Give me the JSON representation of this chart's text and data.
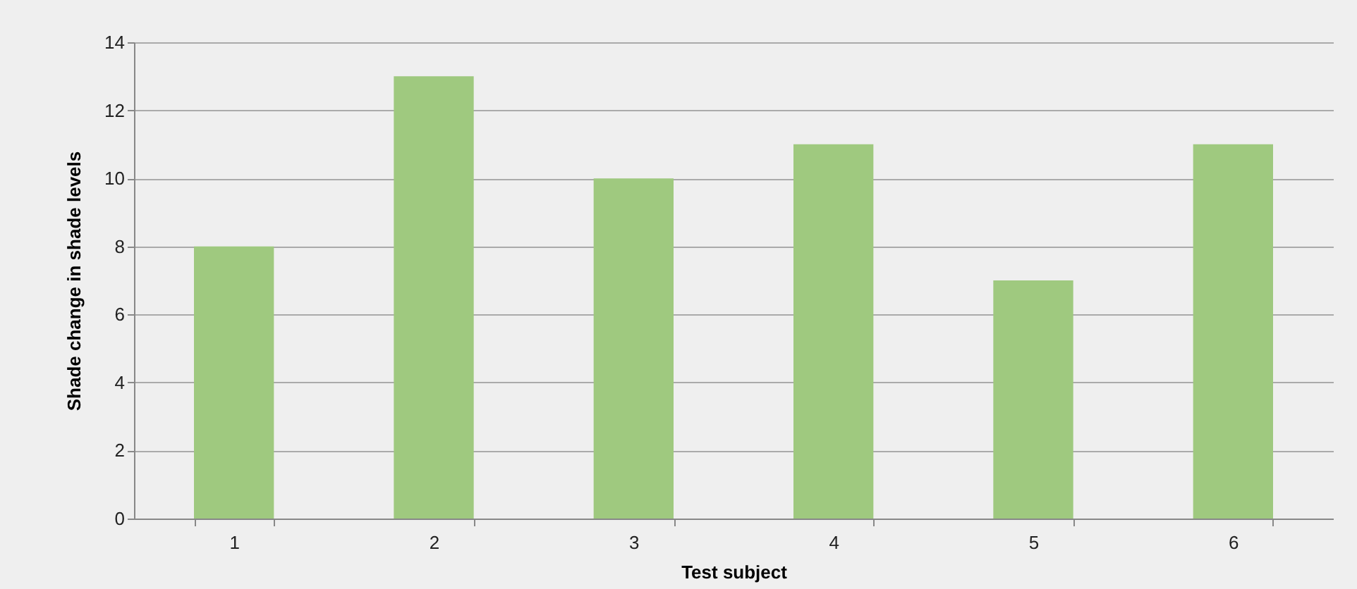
{
  "chart_data": {
    "type": "bar",
    "xlabel": "Test subject",
    "ylabel": "Shade change in shade levels",
    "categories": [
      "1",
      "2",
      "3",
      "4",
      "5",
      "6"
    ],
    "values": [
      8,
      13,
      10,
      11,
      7,
      11
    ],
    "color": "#9fc97f",
    "ylim": [
      0,
      14
    ],
    "yticks": [
      0,
      2,
      4,
      6,
      8,
      10,
      12,
      14
    ],
    "grid": "y"
  }
}
